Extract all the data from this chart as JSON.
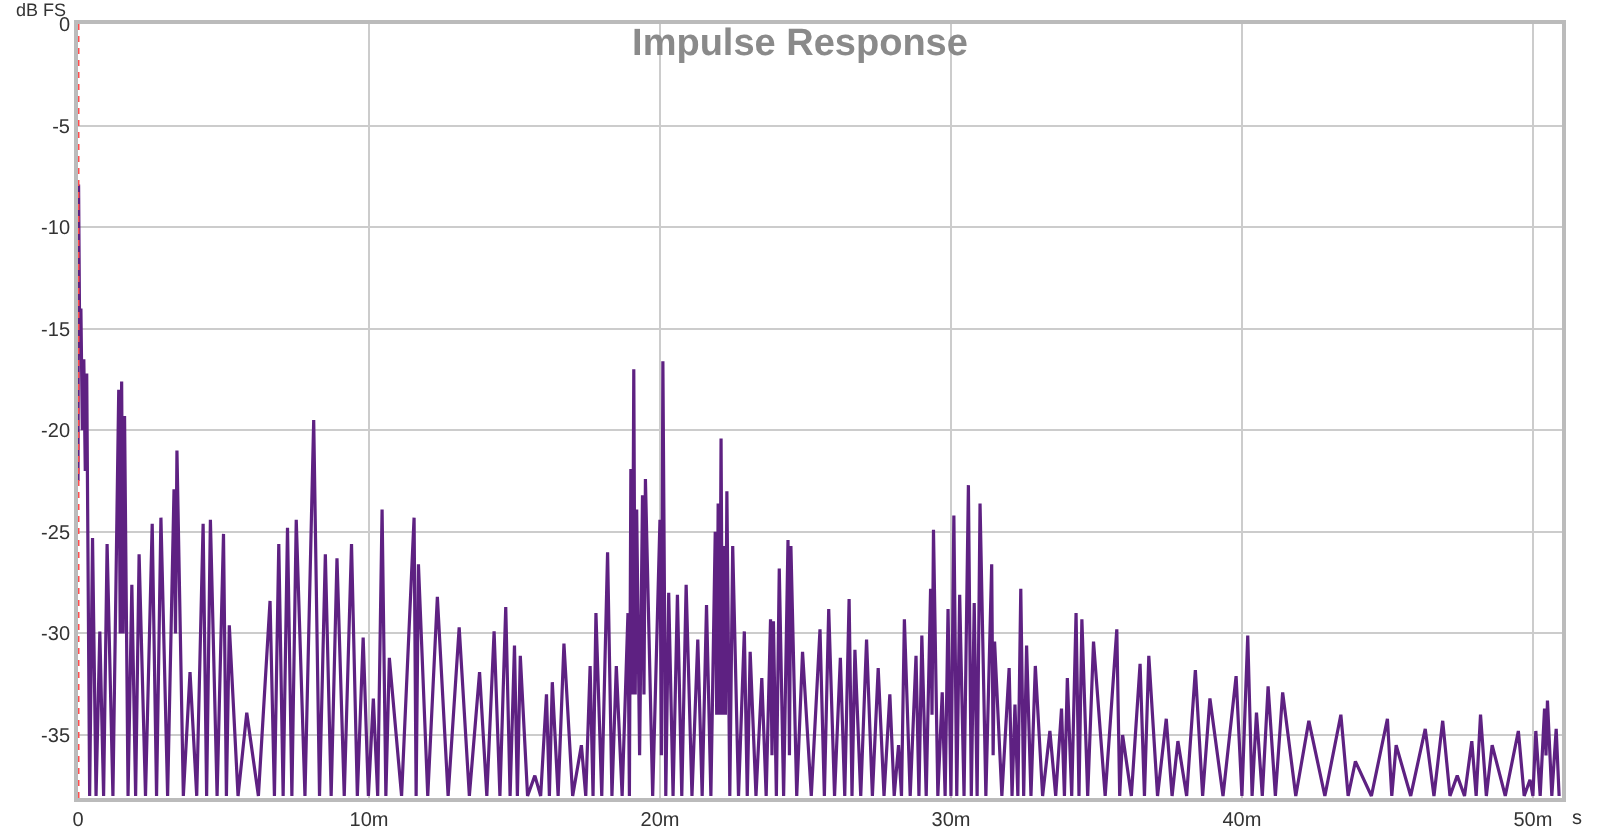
{
  "chart_data": {
    "type": "line",
    "title": "Impulse Response",
    "xlabel": "s",
    "ylabel": "dB FS",
    "xlim": [
      0,
      51
    ],
    "ylim": [
      -38.1,
      0
    ],
    "xticks": [
      0,
      {
        "value": 10,
        "label": "10m"
      },
      {
        "value": 20,
        "label": "20m"
      },
      {
        "value": 30,
        "label": "30m"
      },
      {
        "value": 40,
        "label": "40m"
      },
      {
        "value": 50,
        "label": "50m"
      }
    ],
    "yticks": [
      0,
      -5,
      -10,
      -15,
      -20,
      -25,
      -30,
      -35
    ],
    "grid": true,
    "marker": "none",
    "line_style": "solid",
    "ref_lines": [
      {
        "axis": "x",
        "value": 0,
        "color": "#ff4d4d",
        "line_style": "dotted"
      }
    ],
    "series": [
      {
        "color": "#5e2182",
        "x": [
          0,
          0.02,
          0.06,
          0.1,
          0.15,
          0.2,
          0.25,
          0.3,
          0.4,
          0.5,
          0.62,
          0.75,
          0.88,
          1.0,
          1.2,
          1.4,
          1.45,
          1.5,
          1.55,
          1.6,
          1.72,
          1.85,
          1.98,
          2.1,
          2.32,
          2.55,
          2.7,
          2.85,
          3.08,
          3.3,
          3.35,
          3.4,
          3.62,
          3.85,
          4.08,
          4.3,
          4.42,
          4.55,
          4.78,
          5.0,
          5.1,
          5.2,
          5.5,
          5.8,
          6.2,
          6.6,
          6.75,
          6.9,
          7.05,
          7.2,
          7.35,
          7.5,
          7.8,
          8.1,
          8.3,
          8.5,
          8.7,
          8.9,
          9.15,
          9.4,
          9.6,
          9.8,
          9.98,
          10.15,
          10.3,
          10.45,
          10.58,
          10.7,
          11.12,
          11.55,
          11.62,
          11.7,
          12.02,
          12.35,
          12.72,
          13.1,
          13.45,
          13.8,
          14.05,
          14.3,
          14.5,
          14.7,
          14.85,
          15.0,
          15.1,
          15.2,
          15.45,
          15.7,
          15.9,
          16.1,
          16.2,
          16.3,
          16.5,
          16.7,
          17.0,
          17.3,
          17.45,
          17.6,
          17.7,
          17.8,
          18.0,
          18.2,
          18.35,
          18.5,
          18.7,
          18.9,
          18.95,
          19.0,
          19.05,
          19.1,
          19.15,
          19.2,
          19.3,
          19.4,
          19.45,
          19.5,
          19.75,
          20.0,
          20.05,
          20.1,
          20.2,
          20.3,
          20.45,
          20.6,
          20.75,
          20.9,
          21.1,
          21.3,
          21.45,
          21.6,
          21.75,
          21.9,
          21.95,
          22.0,
          22.05,
          22.1,
          22.15,
          22.2,
          22.25,
          22.3,
          22.4,
          22.5,
          22.7,
          22.9,
          23.0,
          23.1,
          23.3,
          23.5,
          23.65,
          23.8,
          23.85,
          23.9,
          24.0,
          24.1,
          24.25,
          24.4,
          24.45,
          24.5,
          24.7,
          24.9,
          25.2,
          25.5,
          25.65,
          25.8,
          26.0,
          26.2,
          26.35,
          26.5,
          26.6,
          26.7,
          26.9,
          27.1,
          27.3,
          27.5,
          27.7,
          27.9,
          28.05,
          28.2,
          28.3,
          28.4,
          28.6,
          28.8,
          28.9,
          29.0,
          29.15,
          29.3,
          29.35,
          29.4,
          29.55,
          29.7,
          29.8,
          29.9,
          30.0,
          30.1,
          30.2,
          30.3,
          30.45,
          30.6,
          30.7,
          30.8,
          30.9,
          31.0,
          31.2,
          31.4,
          31.45,
          31.5,
          31.75,
          32.0,
          32.1,
          32.2,
          32.3,
          32.4,
          32.5,
          32.6,
          32.75,
          32.9,
          33.15,
          33.4,
          33.6,
          33.8,
          33.9,
          34.0,
          34.15,
          34.3,
          34.4,
          34.5,
          34.7,
          34.9,
          35.3,
          35.7,
          35.8,
          35.9,
          36.2,
          36.5,
          36.65,
          36.8,
          37.1,
          37.4,
          37.6,
          37.8,
          38.1,
          38.4,
          38.65,
          38.9,
          39.35,
          39.8,
          40.0,
          40.2,
          40.35,
          40.5,
          40.7,
          40.9,
          41.15,
          41.4,
          41.85,
          42.3,
          42.85,
          43.4,
          43.65,
          43.9,
          44.45,
          45.0,
          45.15,
          45.3,
          45.8,
          46.3,
          46.6,
          46.9,
          47.15,
          47.4,
          47.65,
          47.9,
          48.05,
          48.2,
          48.4,
          48.6,
          49.05,
          49.5,
          49.7,
          49.9,
          50.0,
          50.1,
          50.25,
          50.4,
          50.45,
          50.5,
          50.65,
          50.8,
          50.9
        ],
        "values": [
          -22.5,
          -7.9,
          -16,
          -14,
          -20,
          -16.5,
          -22,
          -17.2,
          -38,
          -25.3,
          -38,
          -29.9,
          -38,
          -25.6,
          -38,
          -18,
          -30,
          -17.6,
          -30,
          -19.3,
          -38,
          -27.6,
          -38,
          -26.1,
          -38,
          -24.6,
          -38,
          -24.3,
          -38,
          -22.9,
          -30,
          -21,
          -38,
          -31.9,
          -38,
          -24.6,
          -38,
          -24.4,
          -38,
          -25.1,
          -38,
          -29.6,
          -38,
          -33.9,
          -38,
          -28.4,
          -38,
          -25.6,
          -38,
          -24.8,
          -38,
          -24.4,
          -38,
          -19.5,
          -38,
          -26.1,
          -38,
          -26.3,
          -38,
          -25.6,
          -38,
          -30.2,
          -38,
          -33.2,
          -38,
          -23.9,
          -38,
          -31.2,
          -38,
          -24.3,
          -38,
          -26.6,
          -38,
          -28.2,
          -38,
          -29.7,
          -38,
          -31.9,
          -38,
          -29.9,
          -38,
          -28.7,
          -38,
          -30.6,
          -38,
          -31.1,
          -38,
          -37,
          -38,
          -33,
          -38,
          -32.4,
          -38,
          -30.5,
          -38,
          -35.5,
          -38,
          -31.6,
          -38,
          -29,
          -38,
          -26,
          -38,
          -31.6,
          -38,
          -29,
          -38,
          -21.9,
          -33,
          -17,
          -33,
          -23.9,
          -36,
          -23.2,
          -33,
          -22.4,
          -38,
          -24.4,
          -36,
          -16.6,
          -38,
          -28,
          -38,
          -28.1,
          -38,
          -27.6,
          -38,
          -30.3,
          -38,
          -28.6,
          -38,
          -25,
          -34,
          -23.6,
          -34,
          -20.4,
          -34,
          -25.7,
          -34,
          -23,
          -38,
          -25.7,
          -38,
          -29.9,
          -38,
          -30.9,
          -38,
          -32.2,
          -38,
          -29.3,
          -36,
          -29.4,
          -38,
          -26.8,
          -38,
          -25.4,
          -36,
          -25.7,
          -38,
          -30.9,
          -38,
          -29.8,
          -38,
          -28.8,
          -38,
          -31.2,
          -38,
          -28.3,
          -38,
          -30.8,
          -38,
          -30.3,
          -38,
          -31.7,
          -38,
          -33,
          -38,
          -35.5,
          -38,
          -29.3,
          -38,
          -31.1,
          -38,
          -30.1,
          -38,
          -27.8,
          -34,
          -24.9,
          -38,
          -32.9,
          -38,
          -28.8,
          -38,
          -24.2,
          -38,
          -28.1,
          -38,
          -22.7,
          -38,
          -28.5,
          -38,
          -23.6,
          -38,
          -26.6,
          -36,
          -30.4,
          -38,
          -31.7,
          -38,
          -33.5,
          -38,
          -27.8,
          -38,
          -30.6,
          -38,
          -31.6,
          -38,
          -34.8,
          -38,
          -33.7,
          -38,
          -32.2,
          -38,
          -29,
          -38,
          -29.3,
          -38,
          -30.4,
          -38,
          -29.8,
          -38,
          -35,
          -38,
          -31.5,
          -38,
          -31.1,
          -38,
          -34.2,
          -38,
          -35.3,
          -38,
          -31.8,
          -38,
          -33.2,
          -38,
          -32.1,
          -38,
          -30.1,
          -38,
          -33.9,
          -38,
          -32.6,
          -38,
          -32.9,
          -38,
          -34.3,
          -38,
          -34,
          -38,
          -36.3,
          -38,
          -34.2,
          -38,
          -35.5,
          -38,
          -34.7,
          -38,
          -34.3,
          -38,
          -37,
          -38,
          -35.3,
          -38,
          -34,
          -38,
          -35.5,
          -38,
          -34.8,
          -38,
          -37.2,
          -38,
          -34.8,
          -38,
          -33.7,
          -36,
          -33.3,
          -38,
          -34.7,
          -38
        ]
      }
    ]
  }
}
